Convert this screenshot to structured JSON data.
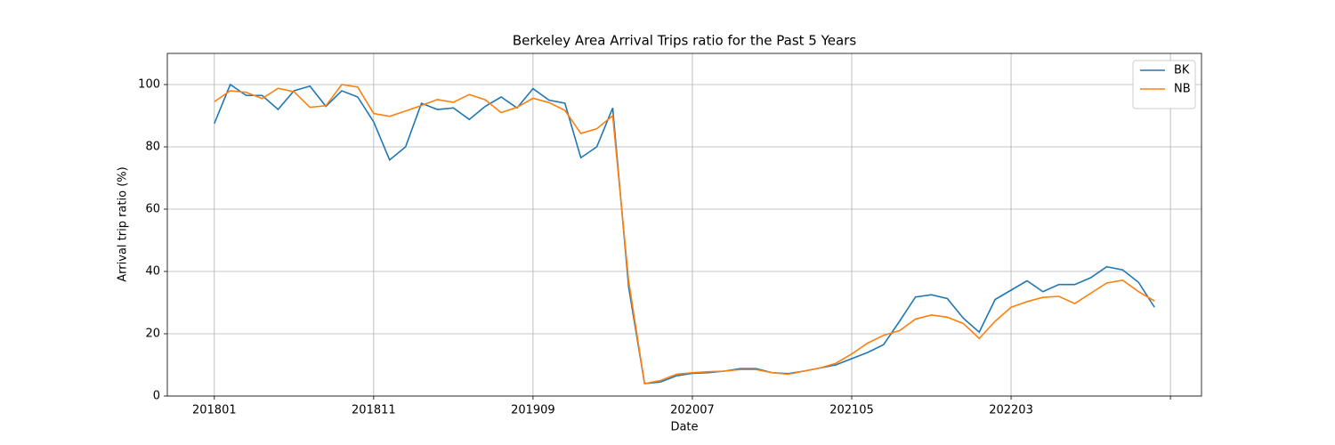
{
  "chart_data": {
    "type": "line",
    "title": "Berkeley Area Arrival Trips ratio for the Past 5 Years",
    "x_label": "Date",
    "y_label": "Arrival trip ratio (%)",
    "categories": [
      "201801",
      null,
      null,
      null,
      null,
      null,
      null,
      null,
      null,
      null,
      "201811",
      null,
      null,
      null,
      null,
      null,
      null,
      null,
      null,
      null,
      "201909",
      null,
      null,
      null,
      null,
      null,
      null,
      null,
      null,
      null,
      "202007",
      null,
      null,
      null,
      null,
      null,
      null,
      null,
      null,
      null,
      "202105",
      null,
      null,
      null,
      null,
      null,
      null,
      null,
      null,
      null,
      "202203",
      null,
      null,
      null,
      null,
      null,
      null,
      null,
      null,
      null
    ],
    "xticks": [
      0,
      10,
      20,
      30,
      40,
      50,
      60
    ],
    "xlim": [
      -2.95,
      61.95
    ],
    "series": [
      {
        "name": "BK",
        "color": "#1f77b4",
        "values": [
          87.5,
          100,
          96.5,
          96.5,
          92,
          98,
          99.5,
          93,
          98,
          96,
          88,
          75.8,
          80,
          94,
          92,
          92.5,
          88.8,
          93,
          96,
          92.5,
          98.7,
          95,
          94,
          76.5,
          80,
          92.5,
          35,
          4,
          4.5,
          6.5,
          7.3,
          7.5,
          8,
          8.8,
          8.8,
          7.5,
          7.2,
          8,
          9,
          10,
          12,
          14,
          16.5,
          24,
          31.8,
          32.5,
          31.3,
          25,
          20.5,
          31,
          34,
          37,
          33.5,
          35.8,
          35.8,
          38,
          41.5,
          40.5,
          36.5,
          28.5
        ]
      },
      {
        "name": "NB",
        "color": "#ff7f0e",
        "values": [
          94.5,
          98,
          97.5,
          95.5,
          98.8,
          97.7,
          92.7,
          93.2,
          100,
          99.2,
          90.7,
          89.8,
          91.5,
          93.3,
          95.2,
          94.3,
          96.8,
          95.1,
          91,
          92.7,
          95.6,
          94.2,
          91.7,
          84.3,
          85.8,
          90,
          37,
          4,
          5,
          7,
          7.5,
          7.8,
          8,
          8.5,
          8.5,
          7.5,
          7,
          8,
          9,
          10.5,
          13.5,
          17,
          19.5,
          21,
          24.7,
          26,
          25.3,
          23.3,
          18.5,
          24,
          28.5,
          30.3,
          31.7,
          32,
          29.7,
          33,
          36.3,
          37.2,
          33.5,
          30.5
        ]
      }
    ],
    "ylim": [
      0,
      110
    ],
    "yticks": [
      0,
      20,
      40,
      60,
      80,
      100
    ],
    "grid": true,
    "legend": "upper right"
  }
}
